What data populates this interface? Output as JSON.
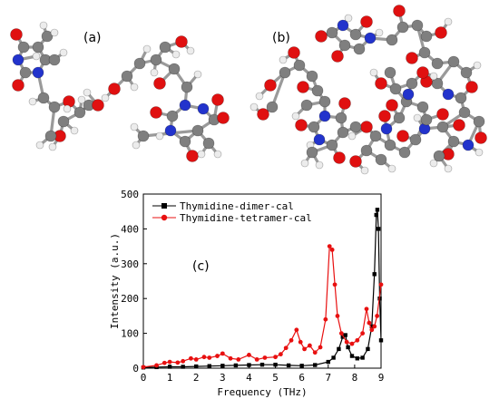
{
  "panels": {
    "a": "(a)",
    "b": "(b)",
    "c": "(c)"
  },
  "atom_colors": {
    "carbon": "#7f7f7f",
    "oxygen": "#e01010",
    "nitrogen": "#2233cc",
    "hydrogen": "#ececec"
  },
  "chart_data": {
    "type": "line",
    "xlabel": "Frequency (THz)",
    "ylabel": "Intensity (a.u.)",
    "xlim": [
      0,
      9
    ],
    "ylim": [
      0,
      500
    ],
    "xticks": [
      "0",
      "1",
      "2",
      "3",
      "4",
      "5",
      "6",
      "7",
      "8",
      "9"
    ],
    "yticks": [
      "0",
      "100",
      "200",
      "300",
      "400",
      "500"
    ],
    "grid": false,
    "legend_position": "top-left",
    "series": [
      {
        "name": "Thymidine-dimer-cal",
        "color": "#000000",
        "marker": "square",
        "x": [
          0,
          0.5,
          1,
          1.5,
          2,
          2.5,
          3,
          3.5,
          4,
          4.5,
          5,
          5.5,
          6,
          6.5,
          7,
          7.2,
          7.4,
          7.55,
          7.65,
          7.75,
          7.9,
          8.1,
          8.3,
          8.5,
          8.65,
          8.75,
          8.82,
          8.86,
          8.9,
          8.95,
          9
        ],
        "y": [
          2,
          3,
          4,
          4,
          5,
          6,
          7,
          8,
          9,
          10,
          10,
          8,
          7,
          9,
          18,
          30,
          55,
          90,
          95,
          60,
          35,
          28,
          30,
          55,
          120,
          270,
          440,
          455,
          400,
          200,
          80
        ]
      },
      {
        "name": "Thymidine-tetramer-cal",
        "color": "#e81010",
        "marker": "circle",
        "x": [
          0,
          0.5,
          0.8,
          1,
          1.3,
          1.5,
          1.8,
          2,
          2.3,
          2.5,
          2.8,
          3,
          3.3,
          3.6,
          4,
          4.3,
          4.6,
          5,
          5.2,
          5.4,
          5.6,
          5.8,
          5.95,
          6.1,
          6.3,
          6.5,
          6.7,
          6.9,
          7.05,
          7.15,
          7.25,
          7.35,
          7.5,
          7.7,
          7.9,
          8.1,
          8.3,
          8.45,
          8.55,
          8.65,
          8.75,
          8.85,
          9
        ],
        "y": [
          3,
          8,
          15,
          18,
          16,
          20,
          28,
          25,
          32,
          30,
          35,
          42,
          28,
          25,
          38,
          25,
          30,
          32,
          40,
          58,
          80,
          110,
          75,
          55,
          65,
          45,
          60,
          140,
          350,
          340,
          240,
          150,
          100,
          75,
          70,
          80,
          100,
          170,
          130,
          110,
          120,
          150,
          240
        ]
      }
    ]
  }
}
